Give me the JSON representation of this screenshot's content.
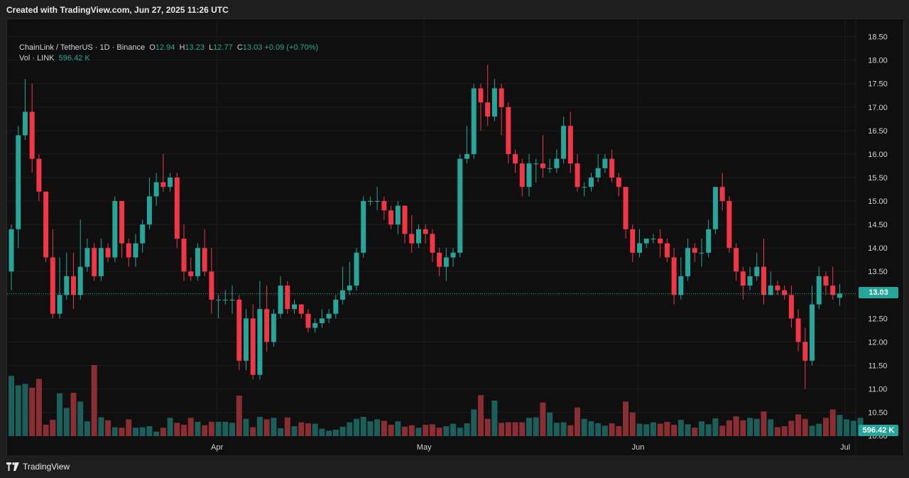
{
  "header": {
    "created_text": "Created with TradingView.com, Jun 27, 2025 11:26 UTC"
  },
  "legend": {
    "symbol": "ChainLink / TetherUS · 1D · Binance",
    "o_label": "O",
    "o_value": "12.94",
    "h_label": "H",
    "h_value": "13.23",
    "l_label": "L",
    "l_value": "12.77",
    "c_label": "C",
    "c_value": "13.03",
    "change": "+0.09 (+0.70%)",
    "vol_label": "Vol · LINK",
    "vol_value": "596.42 K"
  },
  "price_tag": {
    "last_price": "13.03",
    "last_volume": "596.42 K"
  },
  "footer": {
    "brand": "TradingView"
  },
  "colors": {
    "up": "#26a69a",
    "down": "#f23645",
    "up_volume": "#1b5e5a",
    "down_volume": "#8a2e33",
    "grid": "#1c1c1c"
  },
  "chart_data": {
    "type": "candlestick",
    "title": "ChainLink / TetherUS · 1D · Binance",
    "y_ticks": [
      "10.00",
      "10.50",
      "11.00",
      "11.50",
      "12.00",
      "12.50",
      "13.00",
      "13.50",
      "14.00",
      "14.50",
      "15.00",
      "15.50",
      "16.00",
      "16.50",
      "17.00",
      "17.50",
      "18.00",
      "18.50"
    ],
    "x_ticks": [
      {
        "label": "Apr",
        "index": 30
      },
      {
        "label": "May",
        "index": 60
      },
      {
        "label": "Jun",
        "index": 91
      },
      {
        "label": "Jul",
        "index": 121
      }
    ],
    "ylim": [
      9.95,
      18.6
    ],
    "candles": [
      [
        13.5,
        14.4,
        13.1,
        14.5
      ],
      [
        14.4,
        16.4,
        14.0,
        16.6
      ],
      [
        16.4,
        16.9,
        16.3,
        17.6
      ],
      [
        16.9,
        15.9,
        15.6,
        17.5
      ],
      [
        15.9,
        15.2,
        15.0,
        16.0
      ],
      [
        15.2,
        13.8,
        13.7,
        15.2
      ],
      [
        13.8,
        12.6,
        12.5,
        14.4
      ],
      [
        12.6,
        13.0,
        12.5,
        13.8
      ],
      [
        13.0,
        13.4,
        12.9,
        13.9
      ],
      [
        13.4,
        13.0,
        12.7,
        13.9
      ],
      [
        13.0,
        13.6,
        12.9,
        14.6
      ],
      [
        13.6,
        14.0,
        13.5,
        14.2
      ],
      [
        14.0,
        13.4,
        13.3,
        14.1
      ],
      [
        13.4,
        14.0,
        13.3,
        14.2
      ],
      [
        14.0,
        13.8,
        13.7,
        14.1
      ],
      [
        13.8,
        15.0,
        13.7,
        15.1
      ],
      [
        15.0,
        14.1,
        13.8,
        15.0
      ],
      [
        14.1,
        13.8,
        13.6,
        14.2
      ],
      [
        13.8,
        14.1,
        13.6,
        14.3
      ],
      [
        14.1,
        14.5,
        13.9,
        14.6
      ],
      [
        14.5,
        15.1,
        14.4,
        15.5
      ],
      [
        15.1,
        15.4,
        14.9,
        15.6
      ],
      [
        15.4,
        15.3,
        15.2,
        16.0
      ],
      [
        15.3,
        15.5,
        15.2,
        15.6
      ],
      [
        15.5,
        14.2,
        14.0,
        15.6
      ],
      [
        14.2,
        13.5,
        13.3,
        14.5
      ],
      [
        13.5,
        13.4,
        13.3,
        13.8
      ],
      [
        13.4,
        14.0,
        13.3,
        14.1
      ],
      [
        14.0,
        13.5,
        13.4,
        14.4
      ],
      [
        13.5,
        12.9,
        12.6,
        14.0
      ],
      [
        12.9,
        12.9,
        12.5,
        13.0
      ],
      [
        12.9,
        12.9,
        12.8,
        13.1
      ],
      [
        12.9,
        12.9,
        12.6,
        13.2
      ],
      [
        12.9,
        11.6,
        11.4,
        13.0
      ],
      [
        11.6,
        12.5,
        11.4,
        12.7
      ],
      [
        12.5,
        11.3,
        11.2,
        12.8
      ],
      [
        11.3,
        12.7,
        11.2,
        13.3
      ],
      [
        12.7,
        12.0,
        11.8,
        13.2
      ],
      [
        12.0,
        12.6,
        11.9,
        12.7
      ],
      [
        12.6,
        13.2,
        12.5,
        13.4
      ],
      [
        13.2,
        12.7,
        12.6,
        13.3
      ],
      [
        12.7,
        12.8,
        12.6,
        12.9
      ],
      [
        12.8,
        12.6,
        12.5,
        12.8
      ],
      [
        12.6,
        12.3,
        12.2,
        12.7
      ],
      [
        12.3,
        12.4,
        12.2,
        12.5
      ],
      [
        12.4,
        12.5,
        12.3,
        12.7
      ],
      [
        12.5,
        12.6,
        12.4,
        12.7
      ],
      [
        12.6,
        12.9,
        12.5,
        13.0
      ],
      [
        12.9,
        13.1,
        12.8,
        13.6
      ],
      [
        13.1,
        13.2,
        13.0,
        13.7
      ],
      [
        13.2,
        13.9,
        13.1,
        14.0
      ],
      [
        13.9,
        15.0,
        13.8,
        15.1
      ],
      [
        15.0,
        15.0,
        14.9,
        15.1
      ],
      [
        15.0,
        15.0,
        14.8,
        15.3
      ],
      [
        15.0,
        14.8,
        14.6,
        15.1
      ],
      [
        14.8,
        14.5,
        14.4,
        14.9
      ],
      [
        14.5,
        14.9,
        14.3,
        15.0
      ],
      [
        14.9,
        14.3,
        14.1,
        14.9
      ],
      [
        14.3,
        14.1,
        13.9,
        14.7
      ],
      [
        14.1,
        14.4,
        14.0,
        14.5
      ],
      [
        14.4,
        14.3,
        14.1,
        14.5
      ],
      [
        14.3,
        13.9,
        13.7,
        14.4
      ],
      [
        13.9,
        13.6,
        13.4,
        14.0
      ],
      [
        13.6,
        13.8,
        13.3,
        14.0
      ],
      [
        13.8,
        13.9,
        13.6,
        14.0
      ],
      [
        13.9,
        15.9,
        13.8,
        16.0
      ],
      [
        15.9,
        16.0,
        15.8,
        16.6
      ],
      [
        16.0,
        17.4,
        15.9,
        17.5
      ],
      [
        17.4,
        17.1,
        16.5,
        17.5
      ],
      [
        17.1,
        16.8,
        16.6,
        17.9
      ],
      [
        16.8,
        17.4,
        16.7,
        17.6
      ],
      [
        17.4,
        17.0,
        16.4,
        17.5
      ],
      [
        17.0,
        16.0,
        15.8,
        17.1
      ],
      [
        16.0,
        15.8,
        15.6,
        16.1
      ],
      [
        15.8,
        15.3,
        15.1,
        15.9
      ],
      [
        15.3,
        15.8,
        15.1,
        16.0
      ],
      [
        15.8,
        15.8,
        15.4,
        15.9
      ],
      [
        15.8,
        15.7,
        15.5,
        16.4
      ],
      [
        15.7,
        15.7,
        15.6,
        15.9
      ],
      [
        15.7,
        15.9,
        15.6,
        16.1
      ],
      [
        15.9,
        16.6,
        15.8,
        16.8
      ],
      [
        16.6,
        15.8,
        15.6,
        16.9
      ],
      [
        15.8,
        15.3,
        15.2,
        16.0
      ],
      [
        15.3,
        15.3,
        15.1,
        15.4
      ],
      [
        15.3,
        15.5,
        15.2,
        15.6
      ],
      [
        15.5,
        15.7,
        15.4,
        16.0
      ],
      [
        15.7,
        15.9,
        15.6,
        16.0
      ],
      [
        15.9,
        15.5,
        15.4,
        16.1
      ],
      [
        15.5,
        15.3,
        15.1,
        15.6
      ],
      [
        15.3,
        14.4,
        14.2,
        15.3
      ],
      [
        14.4,
        13.9,
        13.7,
        14.5
      ],
      [
        13.9,
        14.1,
        13.8,
        14.4
      ],
      [
        14.1,
        14.2,
        14.0,
        14.2
      ],
      [
        14.2,
        14.2,
        14.1,
        14.3
      ],
      [
        14.2,
        14.1,
        13.8,
        14.4
      ],
      [
        14.1,
        13.8,
        13.7,
        14.2
      ],
      [
        13.8,
        13.0,
        12.8,
        14.0
      ],
      [
        13.0,
        13.4,
        12.9,
        13.8
      ],
      [
        13.4,
        14.0,
        13.3,
        14.2
      ],
      [
        14.0,
        13.9,
        13.7,
        14.1
      ],
      [
        13.9,
        13.9,
        13.6,
        14.2
      ],
      [
        13.9,
        14.4,
        13.8,
        14.6
      ],
      [
        14.4,
        15.3,
        14.3,
        15.3
      ],
      [
        15.3,
        15.0,
        14.8,
        15.6
      ],
      [
        15.0,
        14.0,
        13.9,
        15.1
      ],
      [
        14.0,
        13.5,
        13.3,
        14.1
      ],
      [
        13.5,
        13.2,
        12.9,
        13.6
      ],
      [
        13.2,
        13.4,
        13.1,
        13.6
      ],
      [
        13.4,
        13.6,
        13.3,
        13.9
      ],
      [
        13.6,
        13.0,
        12.8,
        14.2
      ],
      [
        13.0,
        13.2,
        13.0,
        13.5
      ],
      [
        13.2,
        13.1,
        13.0,
        13.3
      ],
      [
        13.1,
        13.0,
        12.9,
        13.2
      ],
      [
        13.0,
        12.5,
        12.3,
        13.2
      ],
      [
        12.5,
        12.0,
        11.8,
        12.7
      ],
      [
        12.0,
        11.6,
        11.0,
        12.3
      ],
      [
        11.6,
        12.8,
        11.5,
        13.2
      ],
      [
        12.8,
        13.4,
        12.7,
        13.6
      ],
      [
        13.4,
        13.2,
        13.0,
        13.5
      ],
      [
        13.2,
        13.0,
        12.9,
        13.6
      ],
      [
        12.94,
        13.03,
        12.77,
        13.23
      ]
    ],
    "volumes": [
      1.22,
      1.03,
      1.06,
      0.98,
      1.16,
      0.23,
      0.33,
      0.87,
      0.57,
      0.88,
      0.7,
      0.3,
      1.44,
      0.38,
      0.32,
      0.18,
      0.17,
      0.34,
      0.17,
      0.18,
      0.2,
      0.09,
      0.17,
      0.37,
      0.27,
      0.23,
      0.37,
      0.29,
      0.22,
      0.29,
      0.29,
      0.29,
      0.27,
      0.82,
      0.35,
      0.18,
      0.39,
      0.34,
      0.37,
      0.16,
      0.38,
      0.2,
      0.28,
      0.26,
      0.25,
      0.15,
      0.11,
      0.13,
      0.19,
      0.28,
      0.35,
      0.39,
      0.3,
      0.34,
      0.31,
      0.23,
      0.3,
      0.19,
      0.22,
      0.17,
      0.23,
      0.24,
      0.17,
      0.2,
      0.25,
      0.17,
      0.26,
      0.54,
      0.83,
      0.35,
      0.72,
      0.27,
      0.28,
      0.28,
      0.28,
      0.37,
      0.38,
      0.68,
      0.48,
      0.27,
      0.28,
      0.22,
      0.58,
      0.35,
      0.3,
      0.26,
      0.21,
      0.26,
      0.2,
      0.7,
      0.48,
      0.25,
      0.24,
      0.28,
      0.25,
      0.29,
      0.23,
      0.33,
      0.24,
      0.17,
      0.3,
      0.24,
      0.36,
      0.21,
      0.32,
      0.4,
      0.32,
      0.37,
      0.35,
      0.5,
      0.34,
      0.18,
      0.2,
      0.31,
      0.44,
      0.35,
      0.21,
      0.25,
      0.37,
      0.54,
      0.43,
      0.34,
      0.31,
      0.37,
      0.16
    ]
  }
}
